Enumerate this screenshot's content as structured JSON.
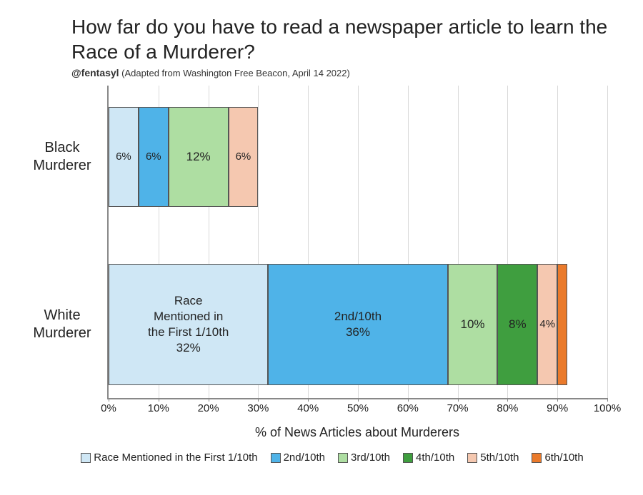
{
  "title": "How far do you have to read a newspaper article to learn the Race of a Murderer?",
  "subtitle_handle": "@fentasyl",
  "subtitle_rest": " (Adapted from Washington Free Beacon, April 14 2022)",
  "chart": {
    "type": "stacked-bar-horizontal",
    "background_color": "#ffffff",
    "grid_color": "#d9d9d9",
    "axis_color": "#888888",
    "text_color": "#222222",
    "title_fontsize": 28,
    "label_fontsize": 18,
    "tick_fontsize": 15,
    "bar_label_fontsize": 17,
    "xlim": [
      0,
      100
    ],
    "xtick_step": 10,
    "xticks": [
      "0%",
      "10%",
      "20%",
      "30%",
      "40%",
      "50%",
      "60%",
      "70%",
      "80%",
      "90%",
      "100%"
    ],
    "xlabel": "% of News Articles about Murderers",
    "categories": [
      {
        "key": "black",
        "label": "Black\nMurderer"
      },
      {
        "key": "white",
        "label": "White\nMurderer"
      }
    ],
    "series": [
      {
        "key": "d1",
        "label": "Race Mentioned in the First 1/10th",
        "color": "#cfe7f5"
      },
      {
        "key": "d2",
        "label": "2nd/10th",
        "color": "#4fb3e8"
      },
      {
        "key": "d3",
        "label": "3rd/10th",
        "color": "#aedea2"
      },
      {
        "key": "d4",
        "label": "4th/10th",
        "color": "#3f9e3f"
      },
      {
        "key": "d5",
        "label": "5th/10th",
        "color": "#f5c8b0"
      },
      {
        "key": "d6",
        "label": "6th/10th",
        "color": "#ea7a2b"
      }
    ],
    "data": {
      "black": {
        "d1": {
          "value": 6,
          "text": "6%"
        },
        "d2": {
          "value": 6,
          "text": "6%"
        },
        "d3": {
          "value": 12,
          "text": "12%"
        },
        "d4": {
          "value": 0,
          "text": ""
        },
        "d5": {
          "value": 6,
          "text": "6%"
        },
        "d6": {
          "value": 0,
          "text": ""
        }
      },
      "white": {
        "d1": {
          "value": 32,
          "text": "Race\nMentioned in\nthe First 1/10th\n32%"
        },
        "d2": {
          "value": 36,
          "text": "2nd/10th\n36%"
        },
        "d3": {
          "value": 10,
          "text": "10%"
        },
        "d4": {
          "value": 8,
          "text": "8%"
        },
        "d5": {
          "value": 4,
          "text": "4%"
        },
        "d6": {
          "value": 2,
          "text": ""
        }
      }
    }
  }
}
